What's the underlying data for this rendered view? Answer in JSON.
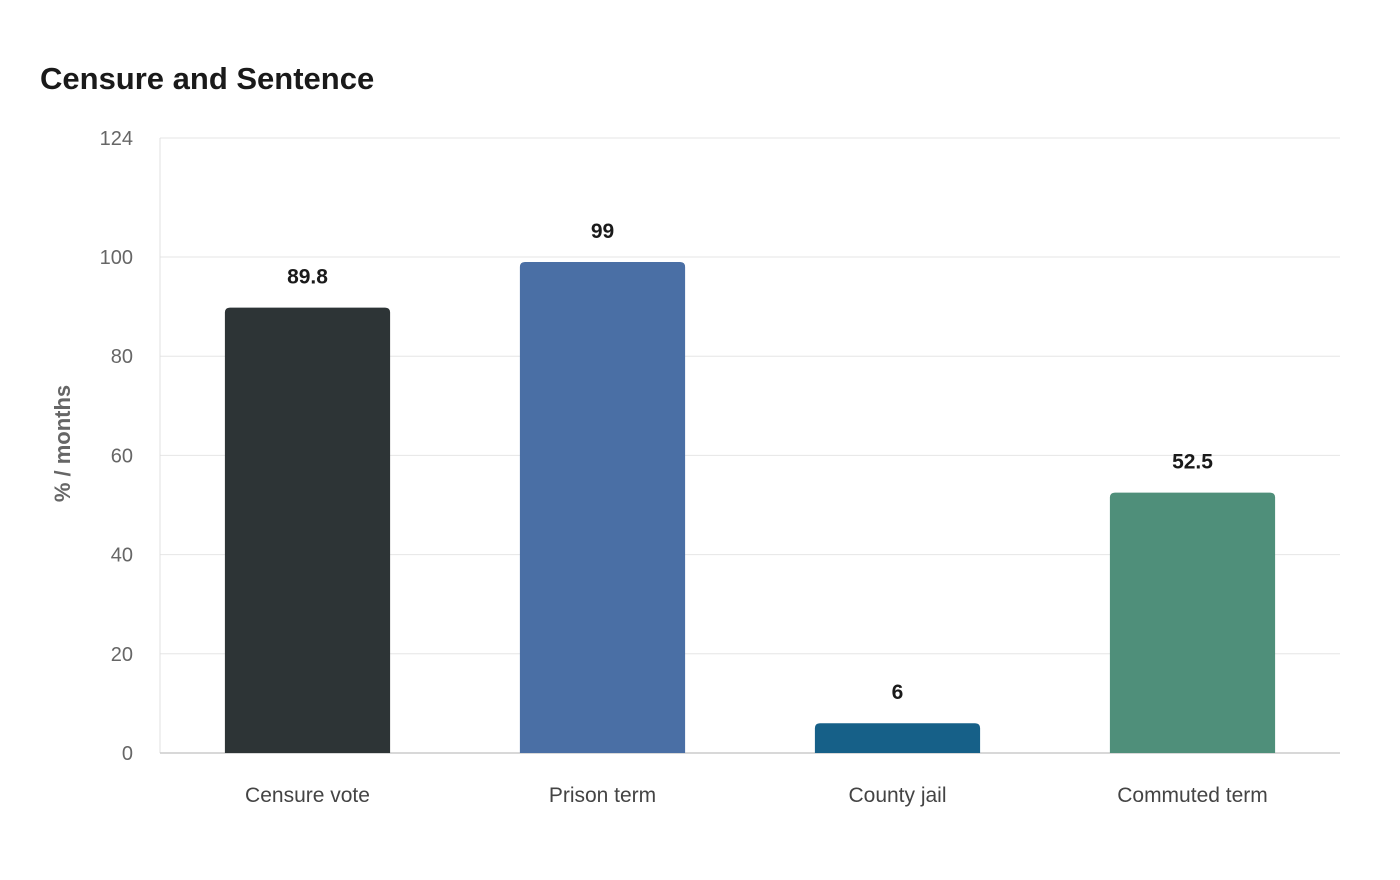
{
  "chart_data": {
    "type": "bar",
    "title": "Censure and Sentence",
    "xlabel": "",
    "ylabel": "% / months",
    "categories": [
      "Censure vote",
      "Prison term",
      "County jail",
      "Commuted term"
    ],
    "values": [
      89.8,
      99,
      6,
      52.5
    ],
    "value_labels": [
      "89.8",
      "99",
      "6",
      "52.5"
    ],
    "colors": [
      "#2d3436",
      "#4a6fa5",
      "#166088",
      "#4f8f7a"
    ],
    "ylim": [
      0,
      124
    ],
    "yticks": [
      0,
      20,
      40,
      60,
      80,
      100,
      124
    ],
    "grid": true,
    "legend": "none"
  }
}
